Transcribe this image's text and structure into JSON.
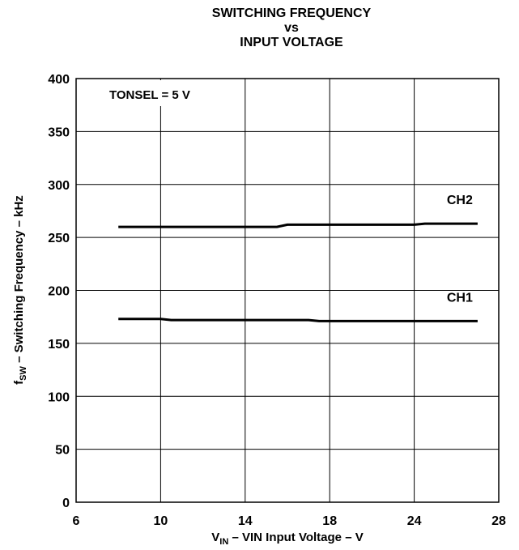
{
  "chart_data": {
    "type": "line",
    "title_lines": [
      "SWITCHING FREQUENCY",
      "vs",
      "INPUT VOLTAGE"
    ],
    "annotation": "TONSEL = 5 V",
    "xlabel": {
      "main": "V",
      "sub": "IN",
      "rest": " – VIN Input Voltage – V"
    },
    "ylabel": {
      "main": "f",
      "sub": "SW",
      "rest": " – Switching Frequency  – kHz"
    },
    "x_ticks": [
      {
        "label": "6",
        "value": 6
      },
      {
        "label": "10",
        "value": 10
      },
      {
        "label": "14",
        "value": 14
      },
      {
        "label": "18",
        "value": 18
      },
      {
        "label": "24",
        "value": 24
      },
      {
        "label": "28",
        "value": 28
      }
    ],
    "ylim": [
      0,
      400
    ],
    "y_ticks": [
      0,
      50,
      100,
      150,
      200,
      250,
      300,
      350,
      400
    ],
    "grid": true,
    "series": [
      {
        "name": "CH2",
        "x": [
          8,
          10,
          12,
          14,
          15.5,
          16,
          18,
          20,
          22,
          24,
          24.5,
          26,
          27
        ],
        "y": [
          260,
          260,
          260,
          260,
          260,
          262,
          262,
          262,
          262,
          262,
          263,
          263,
          263
        ]
      },
      {
        "name": "CH1",
        "x": [
          8,
          10,
          10.5,
          12,
          14,
          16,
          17,
          17.5,
          18,
          20,
          24,
          27
        ],
        "y": [
          173,
          173,
          172,
          172,
          172,
          172,
          172,
          171,
          171,
          171,
          171,
          171
        ]
      }
    ]
  }
}
